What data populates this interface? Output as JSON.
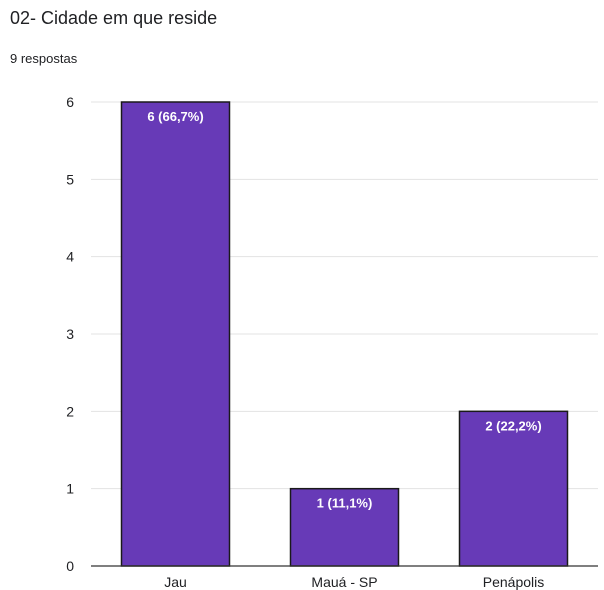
{
  "header": {
    "title": "02- Cidade em que reside",
    "subtitle": "9 respostas"
  },
  "chart_data": {
    "type": "bar",
    "categories": [
      "Jau",
      "Mauá - SP",
      "Penápolis"
    ],
    "values": [
      6,
      1,
      2
    ],
    "data_labels": [
      "6 (66,7%)",
      "1 (11,1%)",
      "2 (22,2%)"
    ],
    "xlabel": "",
    "ylabel": "",
    "ylim": [
      0,
      6
    ],
    "yticks": [
      0,
      1,
      2,
      3,
      4,
      5,
      6
    ],
    "grid": true,
    "bar_color": "#673ab7",
    "bar_border_color": "#1a1a1a",
    "legend": "none"
  }
}
